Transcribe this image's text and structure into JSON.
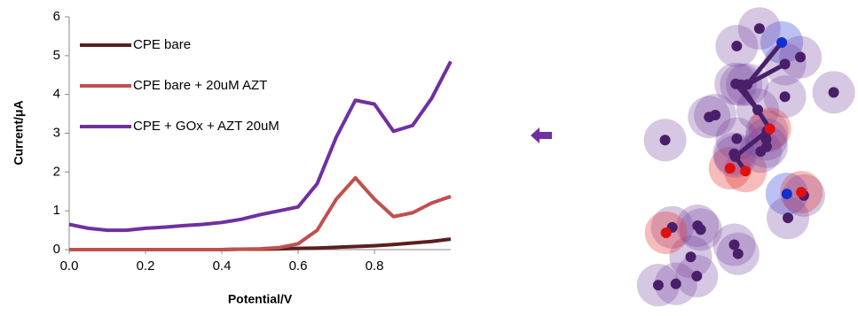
{
  "chart_data": {
    "type": "line",
    "x_label": "Potential/V",
    "y_label": "Current/μA",
    "x": [
      0,
      0.05,
      0.1,
      0.15,
      0.2,
      0.25,
      0.3,
      0.35,
      0.4,
      0.45,
      0.5,
      0.55,
      0.6,
      0.65,
      0.7,
      0.75,
      0.8,
      0.85,
      0.9,
      0.95,
      1.0
    ],
    "series": [
      {
        "name": "CPE bare",
        "color": "#5b1f1f",
        "values": [
          0,
          0,
          0,
          0,
          0,
          0,
          0,
          0,
          0,
          0.01,
          0.01,
          0.02,
          0.03,
          0.04,
          0.06,
          0.08,
          0.1,
          0.13,
          0.17,
          0.21,
          0.27
        ]
      },
      {
        "name": "CPE bare + 20uM AZT",
        "color": "#c0504d",
        "values": [
          0,
          0,
          0,
          0,
          0,
          0,
          0,
          0,
          0,
          0.01,
          0.02,
          0.05,
          0.15,
          0.5,
          1.3,
          1.85,
          1.3,
          0.85,
          0.95,
          1.2,
          1.37
        ]
      },
      {
        "name": "CPE + GOx + AZT 20uM",
        "color": "#7030a0",
        "values": [
          0.65,
          0.55,
          0.5,
          0.5,
          0.55,
          0.58,
          0.62,
          0.65,
          0.7,
          0.78,
          0.9,
          1.0,
          1.1,
          1.7,
          2.9,
          3.85,
          3.75,
          3.05,
          3.2,
          3.9,
          4.85
        ]
      }
    ],
    "xlim": [
      0,
      1.0
    ],
    "ylim": [
      0,
      6
    ],
    "xticks": [
      {
        "value": 0,
        "label": "0.0"
      },
      {
        "value": 0.2,
        "label": "0.2"
      },
      {
        "value": 0.4,
        "label": "0.4"
      },
      {
        "value": 0.6,
        "label": "0.6"
      },
      {
        "value": 0.8,
        "label": "0.8"
      }
    ],
    "yticks": [
      0,
      1,
      2,
      3,
      4,
      5,
      6
    ],
    "legend": "top-left",
    "grid": false
  }
}
